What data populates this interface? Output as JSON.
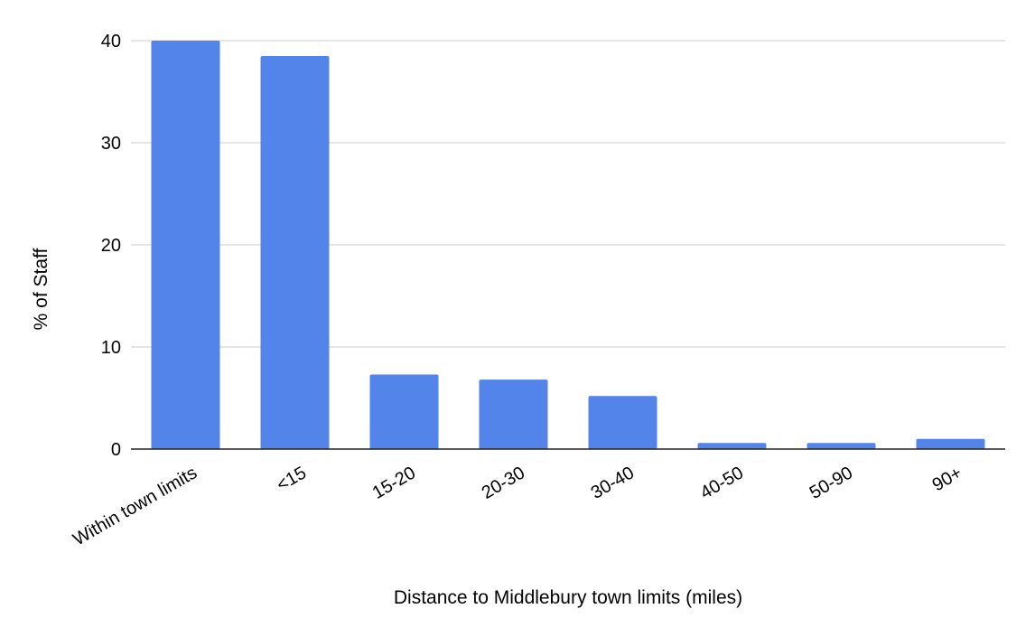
{
  "chart_data": {
    "type": "bar",
    "title": "",
    "xlabel": "Distance to Middlebury town limits (miles)",
    "ylabel": "% of Staff",
    "categories": [
      "Within town limits",
      "<15",
      "15-20",
      "20-30",
      "30-40",
      "40-50",
      "50-90",
      "90+"
    ],
    "values": [
      40,
      38.5,
      7.3,
      6.8,
      5.2,
      0.6,
      0.6,
      1.0
    ],
    "ylim": [
      0,
      40
    ],
    "yticks": [
      "0",
      "10",
      "20",
      "30",
      "40"
    ],
    "grid": true,
    "legend": "none",
    "bar_color": "#5384ea"
  }
}
